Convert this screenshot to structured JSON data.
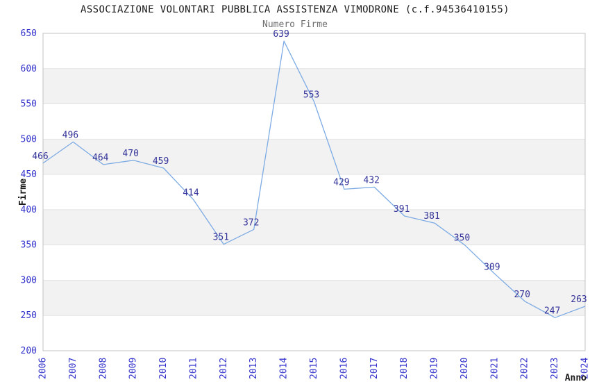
{
  "page": {
    "title": "ASSOCIAZIONE VOLONTARI PUBBLICA ASSISTENZA VIMODRONE (c.f.94536410155)",
    "subtitle": "Numero Firme"
  },
  "chart_data": {
    "type": "line",
    "title": "ASSOCIAZIONE VOLONTARI PUBBLICA ASSISTENZA VIMODRONE (c.f.94536410155)",
    "subtitle": "Numero Firme",
    "xlabel": "Anno",
    "ylabel": "Firme",
    "categories": [
      "2006",
      "2007",
      "2008",
      "2009",
      "2010",
      "2011",
      "2012",
      "2013",
      "2014",
      "2015",
      "2016",
      "2017",
      "2018",
      "2019",
      "2020",
      "2021",
      "2022",
      "2023",
      "2024"
    ],
    "values": [
      466,
      496,
      464,
      470,
      459,
      414,
      351,
      372,
      639,
      553,
      429,
      432,
      391,
      381,
      350,
      309,
      270,
      247,
      263
    ],
    "ylim": [
      200,
      650
    ],
    "ytick_step": 50,
    "grid": "alternating horizontal bands with light gridlines every 50",
    "legend": "none",
    "data_labels_shown": true,
    "colors": {
      "line": "#7dabe4",
      "tick_labels": "#3333cc",
      "data_labels": "#333399",
      "band": "#f2f2f2",
      "grid_line": "#e3e3e3",
      "plot_border": "#c3c3c3",
      "title": "#1a1a1a",
      "subtitle": "#6e6e6e",
      "axis_titles": "#1a1a1a"
    }
  }
}
